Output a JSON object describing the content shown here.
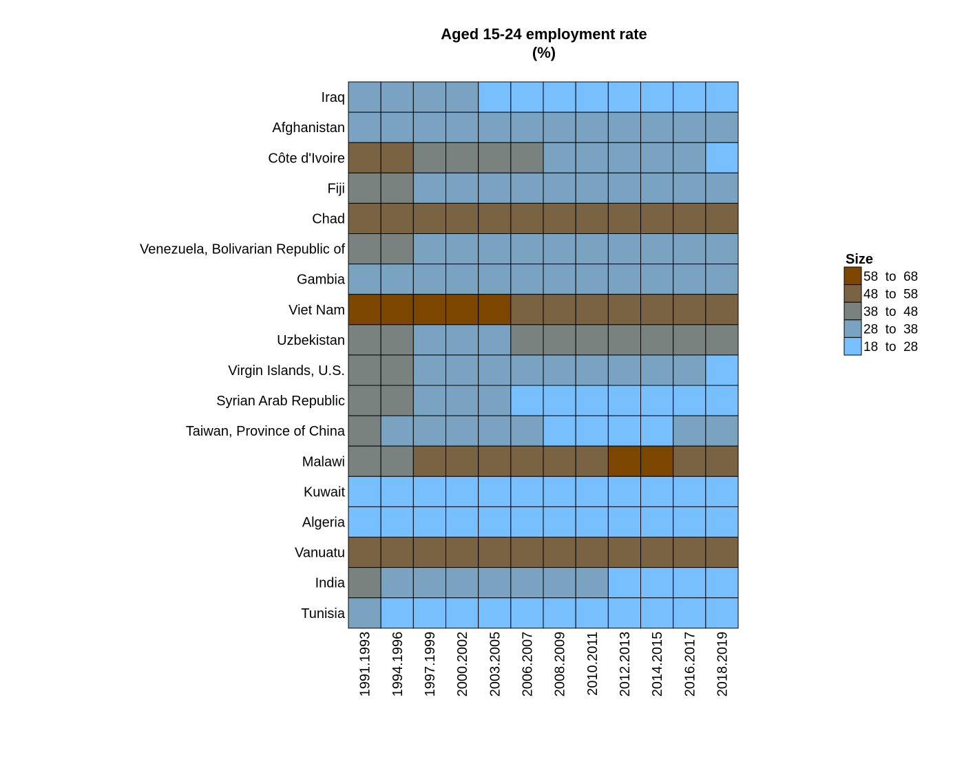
{
  "chart_data": {
    "type": "heatmap",
    "title": "Aged 15-24 employment rate",
    "subtitle": "(%)",
    "xlabel": "",
    "ylabel": "",
    "x": [
      "1991.1993",
      "1994.1996",
      "1997.1999",
      "2000.2002",
      "2003.2005",
      "2006.2007",
      "2008.2009",
      "2010.2011",
      "2012.2013",
      "2014.2015",
      "2016.2017",
      "2018.2019"
    ],
    "y": [
      "Iraq",
      "Afghanistan",
      "Côte d'Ivoire",
      "Fiji",
      "Chad",
      "Venezuela, Bolivarian Republic of",
      "Gambia",
      "Viet Nam",
      "Uzbekistan",
      "Virgin Islands, U.S.",
      "Syrian Arab Republic",
      "Taiwan, Province of China",
      "Malawi",
      "Kuwait",
      "Algeria",
      "Vanuatu",
      "India",
      "Tunisia"
    ],
    "bins": [
      {
        "label": "58  to  68",
        "color": "#7b4700"
      },
      {
        "label": "48  to  58",
        "color": "#7a6342"
      },
      {
        "label": "38  to  48",
        "color": "#7a8280"
      },
      {
        "label": "28  to  38",
        "color": "#7aa2c1"
      },
      {
        "label": "18  to  28",
        "color": "#78bfff"
      }
    ],
    "cells": [
      [
        3,
        3,
        3,
        3,
        4,
        4,
        4,
        4,
        4,
        4,
        4,
        4
      ],
      [
        3,
        3,
        3,
        3,
        3,
        3,
        3,
        3,
        3,
        3,
        3,
        3
      ],
      [
        1,
        1,
        2,
        2,
        2,
        2,
        3,
        3,
        3,
        3,
        3,
        4
      ],
      [
        2,
        2,
        3,
        3,
        3,
        3,
        3,
        3,
        3,
        3,
        3,
        3
      ],
      [
        1,
        1,
        1,
        1,
        1,
        1,
        1,
        1,
        1,
        1,
        1,
        1
      ],
      [
        2,
        2,
        3,
        3,
        3,
        3,
        3,
        3,
        3,
        3,
        3,
        3
      ],
      [
        3,
        3,
        3,
        3,
        3,
        3,
        3,
        3,
        3,
        3,
        3,
        3
      ],
      [
        0,
        0,
        0,
        0,
        0,
        1,
        1,
        1,
        1,
        1,
        1,
        1
      ],
      [
        2,
        2,
        3,
        3,
        3,
        2,
        2,
        2,
        2,
        2,
        2,
        2
      ],
      [
        2,
        2,
        3,
        3,
        3,
        3,
        3,
        3,
        3,
        3,
        3,
        4
      ],
      [
        2,
        2,
        3,
        3,
        3,
        4,
        4,
        4,
        4,
        4,
        4,
        4
      ],
      [
        2,
        3,
        3,
        3,
        3,
        3,
        4,
        4,
        4,
        4,
        3,
        3
      ],
      [
        2,
        2,
        1,
        1,
        1,
        1,
        1,
        1,
        0,
        0,
        1,
        1
      ],
      [
        4,
        4,
        4,
        4,
        4,
        4,
        4,
        4,
        4,
        4,
        4,
        4
      ],
      [
        4,
        4,
        4,
        4,
        4,
        4,
        4,
        4,
        4,
        4,
        4,
        4
      ],
      [
        1,
        1,
        1,
        1,
        1,
        1,
        1,
        1,
        1,
        1,
        1,
        1
      ],
      [
        2,
        3,
        3,
        3,
        3,
        3,
        3,
        3,
        4,
        4,
        4,
        4
      ],
      [
        3,
        4,
        4,
        4,
        4,
        4,
        4,
        4,
        4,
        4,
        4,
        4
      ]
    ],
    "legend": {
      "title": "Size",
      "position": "right"
    },
    "grid": false
  }
}
